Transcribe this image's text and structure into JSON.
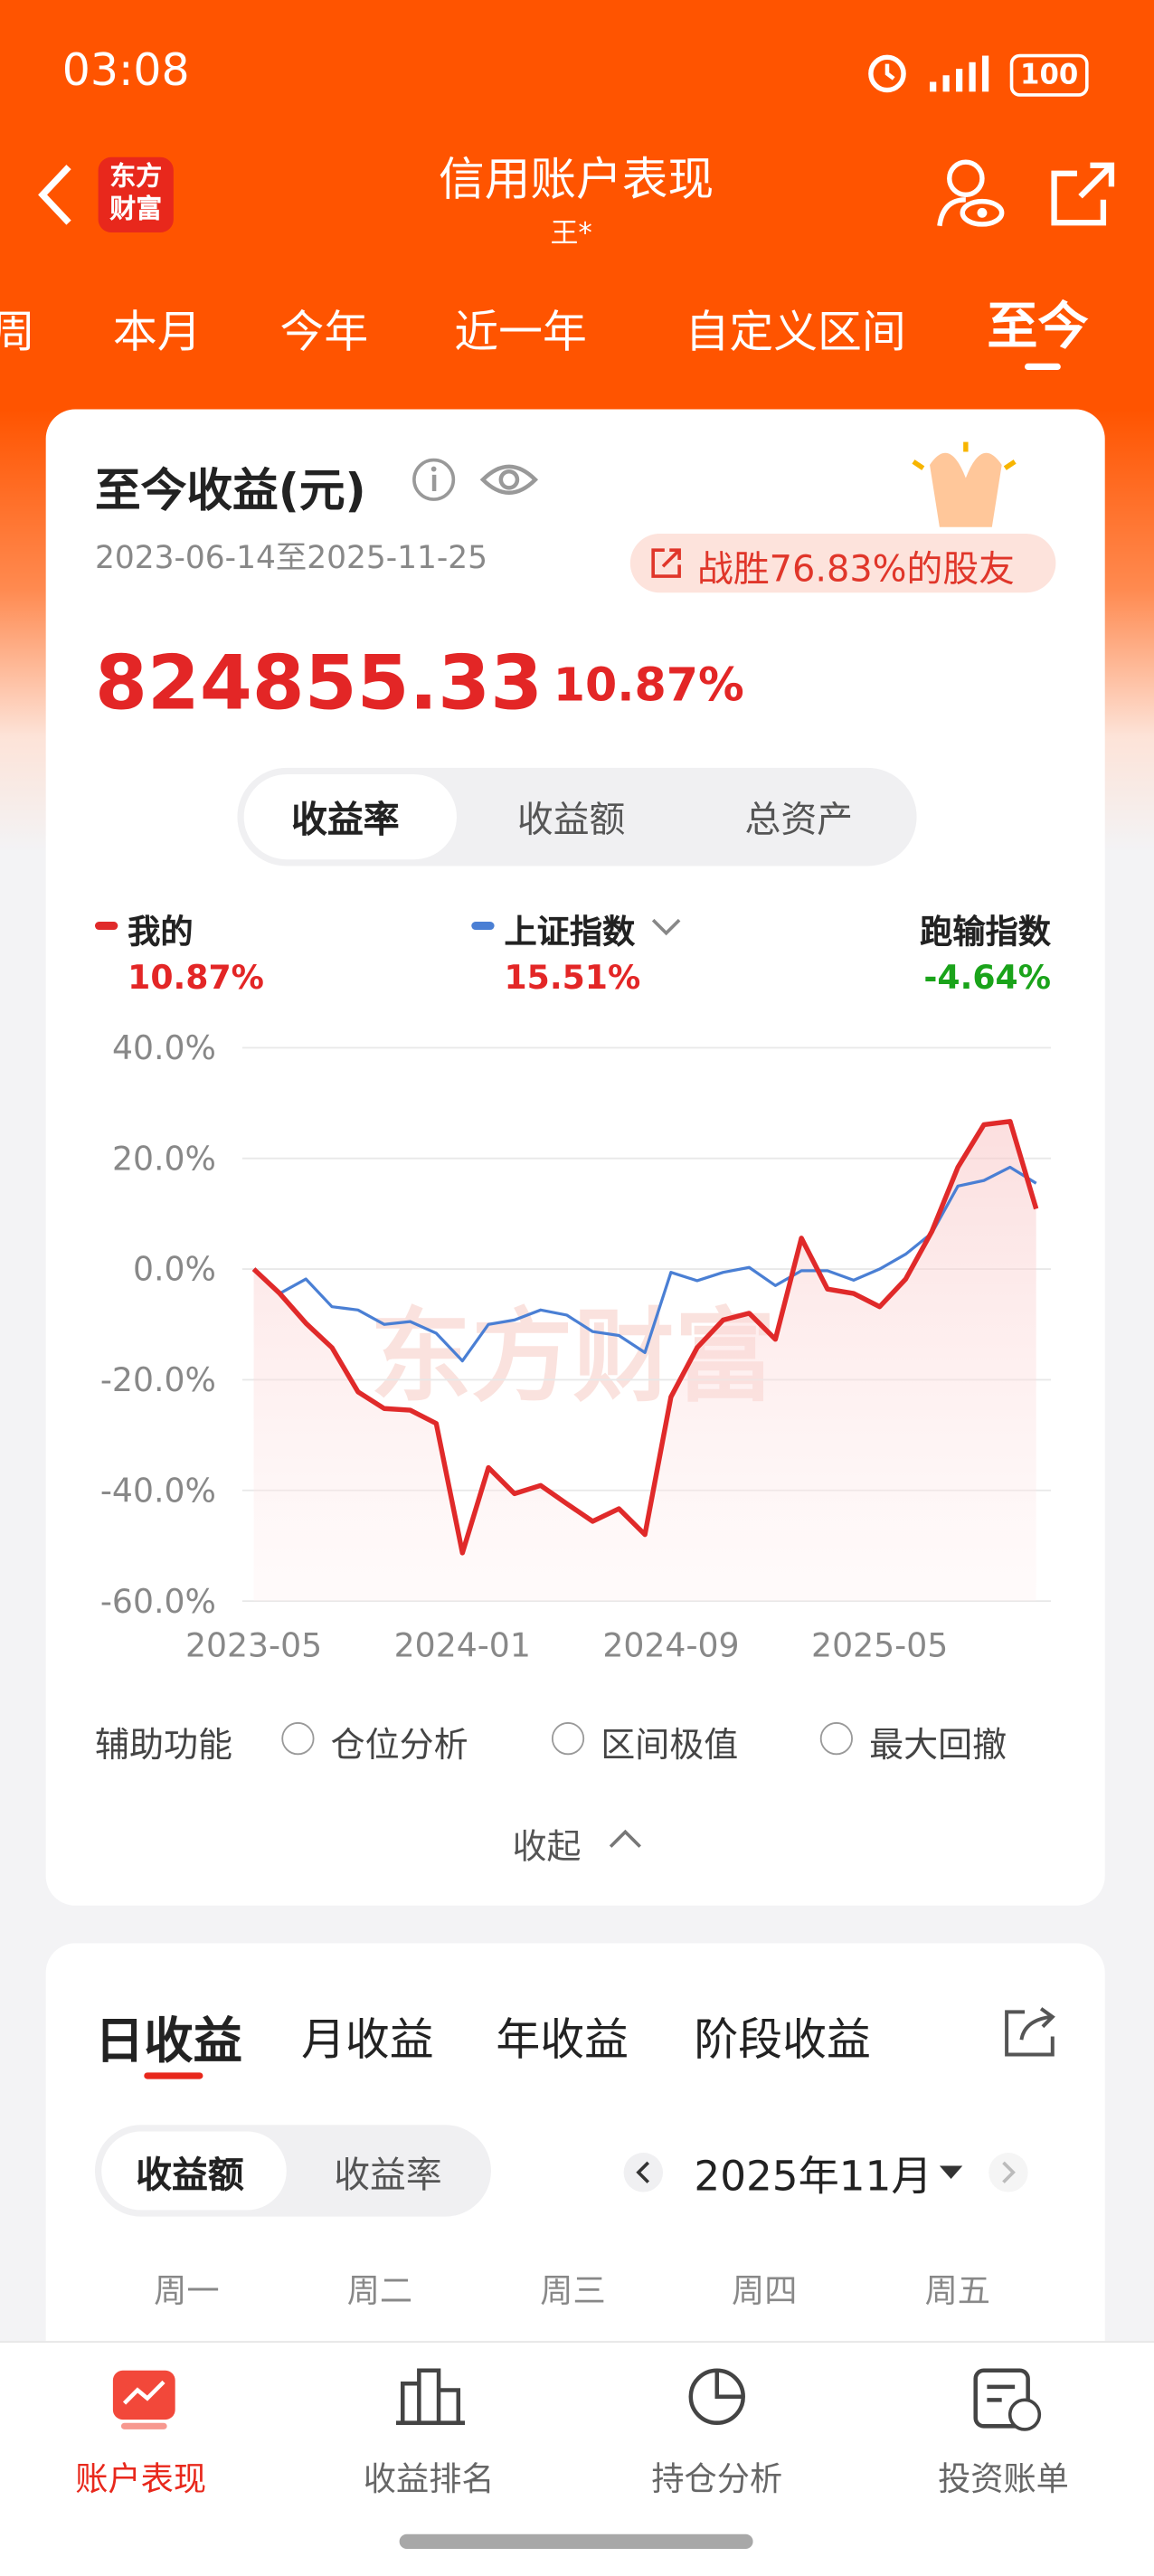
{
  "status": {
    "time": "03:08",
    "battery": "100"
  },
  "header": {
    "logo": [
      "东方",
      "财富"
    ],
    "title": "信用账户表现",
    "subtitle": "王*"
  },
  "tabs": {
    "items": [
      "周",
      "本月",
      "今年",
      "近一年",
      "自定义区间",
      "至今"
    ],
    "active": 5
  },
  "summary": {
    "title": "至今收益(元)",
    "range": "2023-06-14至2025-11-25",
    "badge": "战胜76.83%的股友",
    "amount": "824855.33",
    "rate": "10.87%",
    "toggles": [
      "收益率",
      "收益额",
      "总资产"
    ],
    "active_toggle": 0
  },
  "legend": [
    {
      "name": "我的",
      "value": "10.87%"
    },
    {
      "name": "上证指数",
      "value": "15.51%"
    },
    {
      "name": "跑输指数",
      "value": "-4.64%"
    }
  ],
  "chart": {
    "type": "line",
    "watermark": "东方财富",
    "x": [
      "2023-05",
      "2023-06",
      "2023-07",
      "2023-08",
      "2023-09",
      "2023-10",
      "2023-11",
      "2023-12",
      "2024-01",
      "2024-02",
      "2024-03",
      "2024-04",
      "2024-05",
      "2024-06",
      "2024-07",
      "2024-08",
      "2024-09",
      "2024-10",
      "2024-11",
      "2024-12",
      "2025-01",
      "2025-02",
      "2025-03",
      "2025-04",
      "2025-05",
      "2025-06",
      "2025-07",
      "2025-08",
      "2025-09",
      "2025-10",
      "2025-11"
    ],
    "xticks": [
      "2023-05",
      "2024-01",
      "2024-09",
      "2025-05"
    ],
    "ylim": [
      -60,
      40
    ],
    "yticks": [
      {
        "value": -60,
        "label": "-60.0%"
      },
      {
        "value": -40,
        "label": "-40.0%"
      },
      {
        "value": -20,
        "label": "-20.0%"
      },
      {
        "value": 0,
        "label": "0.0%"
      },
      {
        "value": 20,
        "label": "20.0%"
      },
      {
        "value": 40,
        "label": "40.0%"
      }
    ],
    "grid": true,
    "series": [
      {
        "name": "我的",
        "color": "#e02a2a",
        "values": [
          0,
          -4.4,
          -9.8,
          -14.2,
          -22.2,
          -25.2,
          -25.5,
          -27.9,
          -51.3,
          -35.9,
          -40.6,
          -39.1,
          -42.4,
          -45.6,
          -43.3,
          -48,
          -23.1,
          -14.2,
          -9.2,
          -8,
          -12.7,
          5.6,
          -3.6,
          -4.4,
          -6.8,
          -1.8,
          6.8,
          18.4,
          26.1,
          26.7,
          10.9
        ]
      },
      {
        "name": "上证指数",
        "color": "#4a7fd4",
        "values": [
          0,
          -4.4,
          -1.8,
          -6.8,
          -7.4,
          -10,
          -9.5,
          -11.6,
          -16.6,
          -10,
          -9.2,
          -7.4,
          -8.3,
          -11.3,
          -12,
          -15.1,
          -0.6,
          -2.1,
          -0.6,
          0.3,
          -3,
          -0.3,
          -0.3,
          -2,
          0,
          2.7,
          6.5,
          15,
          16,
          18.4,
          15.5
        ]
      }
    ]
  },
  "aux": {
    "label": "辅助功能",
    "options": [
      "仓位分析",
      "区间极值",
      "最大回撤"
    ],
    "collapse": "收起"
  },
  "daily": {
    "tabs": [
      "日收益",
      "月收益",
      "年收益",
      "阶段收益"
    ],
    "active": 0,
    "toggles": [
      "收益额",
      "收益率"
    ],
    "month": "2025年11月",
    "weekdays": [
      "周一",
      "周二",
      "周三",
      "周四",
      "周五"
    ]
  },
  "nav": [
    "账户表现",
    "收益排名",
    "持仓分析",
    "投资账单"
  ]
}
